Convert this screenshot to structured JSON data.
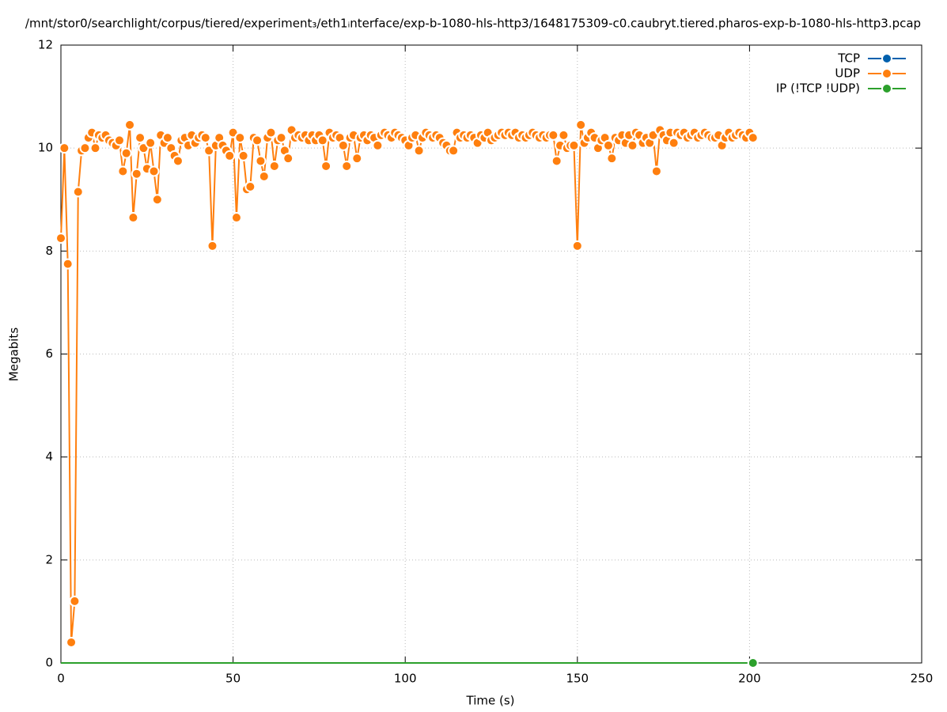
{
  "chart_data": {
    "type": "line",
    "title": "/mnt/stor0/searchlight/corpus/tiered/experiment₃/eth1ᵢnterface/exp-b-1080-hls-http3/1648175309-c0.caubryt.tiered.pharos-exp-b-1080-hls-http3.pcap",
    "xlabel": "Time (s)",
    "ylabel": "Megabits",
    "xlim": [
      0,
      250
    ],
    "xticks": [
      0,
      50,
      100,
      150,
      200,
      250
    ],
    "ylim": [
      0,
      12
    ],
    "yticks": [
      0,
      2,
      4,
      6,
      8,
      10,
      12
    ],
    "grid": true,
    "legend": "top-right",
    "x": [
      0,
      1,
      2,
      3,
      4,
      5,
      6,
      7,
      8,
      9,
      10,
      11,
      12,
      13,
      14,
      15,
      16,
      17,
      18,
      19,
      20,
      21,
      22,
      23,
      24,
      25,
      26,
      27,
      28,
      29,
      30,
      31,
      32,
      33,
      34,
      35,
      36,
      37,
      38,
      39,
      40,
      41,
      42,
      43,
      44,
      45,
      46,
      47,
      48,
      49,
      50,
      51,
      52,
      53,
      54,
      55,
      56,
      57,
      58,
      59,
      60,
      61,
      62,
      63,
      64,
      65,
      66,
      67,
      68,
      69,
      70,
      71,
      72,
      73,
      74,
      75,
      76,
      77,
      78,
      79,
      80,
      81,
      82,
      83,
      84,
      85,
      86,
      87,
      88,
      89,
      90,
      91,
      92,
      93,
      94,
      95,
      96,
      97,
      98,
      99,
      100,
      101,
      102,
      103,
      104,
      105,
      106,
      107,
      108,
      109,
      110,
      111,
      112,
      113,
      114,
      115,
      116,
      117,
      118,
      119,
      120,
      121,
      122,
      123,
      124,
      125,
      126,
      127,
      128,
      129,
      130,
      131,
      132,
      133,
      134,
      135,
      136,
      137,
      138,
      139,
      140,
      141,
      142,
      143,
      144,
      145,
      146,
      147,
      148,
      149,
      150,
      151,
      152,
      153,
      154,
      155,
      156,
      157,
      158,
      159,
      160,
      161,
      162,
      163,
      164,
      165,
      166,
      167,
      168,
      169,
      170,
      171,
      172,
      173,
      174,
      175,
      176,
      177,
      178,
      179,
      180,
      181,
      182,
      183,
      184,
      185,
      186,
      187,
      188,
      189,
      190,
      191,
      192,
      193,
      194,
      195,
      196,
      197,
      198,
      199,
      200,
      201
    ],
    "series": [
      {
        "name": "TCP",
        "color": "#0060ad",
        "values": [
          0,
          0,
          0,
          0,
          0,
          0,
          0,
          0,
          0,
          0,
          0,
          0,
          0,
          0,
          0,
          0,
          0,
          0,
          0,
          0,
          0,
          0,
          0,
          0,
          0,
          0,
          0,
          0,
          0,
          0,
          0,
          0,
          0,
          0,
          0,
          0,
          0,
          0,
          0,
          0,
          0,
          0,
          0,
          0,
          0,
          0,
          0,
          0,
          0,
          0,
          0,
          0,
          0,
          0,
          0,
          0,
          0,
          0,
          0,
          0,
          0,
          0,
          0,
          0,
          0,
          0,
          0,
          0,
          0,
          0,
          0,
          0,
          0,
          0,
          0,
          0,
          0,
          0,
          0,
          0,
          0,
          0,
          0,
          0,
          0,
          0,
          0,
          0,
          0,
          0,
          0,
          0,
          0,
          0,
          0,
          0,
          0,
          0,
          0,
          0,
          0,
          0,
          0,
          0,
          0,
          0,
          0,
          0,
          0,
          0,
          0,
          0,
          0,
          0,
          0,
          0,
          0,
          0,
          0,
          0,
          0,
          0,
          0,
          0,
          0,
          0,
          0,
          0,
          0,
          0,
          0,
          0,
          0,
          0,
          0,
          0,
          0,
          0,
          0,
          0,
          0,
          0,
          0,
          0,
          0,
          0,
          0,
          0,
          0,
          0,
          0,
          0,
          0,
          0,
          0,
          0,
          0,
          0,
          0,
          0,
          0,
          0,
          0,
          0,
          0,
          0,
          0,
          0,
          0,
          0,
          0,
          0,
          0,
          0,
          0,
          0,
          0,
          0,
          0,
          0,
          0,
          0,
          0,
          0,
          0,
          0,
          0,
          0,
          0,
          0,
          0,
          0,
          0,
          0,
          0,
          0,
          0,
          0,
          0,
          0,
          0,
          0
        ]
      },
      {
        "name": "UDP",
        "color": "#ff7f0e",
        "values": [
          8.25,
          10,
          7.75,
          0.4,
          1.2,
          9.15,
          9.95,
          10,
          10.2,
          10.3,
          10,
          10.25,
          10.2,
          10.25,
          10.15,
          10.1,
          10.05,
          10.15,
          9.55,
          9.9,
          10.45,
          8.65,
          9.5,
          10.2,
          10,
          9.6,
          10.1,
          9.55,
          9,
          10.25,
          10.1,
          10.2,
          10,
          9.85,
          9.75,
          10.15,
          10.2,
          10.05,
          10.25,
          10.1,
          10.2,
          10.25,
          10.2,
          9.95,
          8.1,
          10.05,
          10.2,
          10.05,
          9.95,
          9.85,
          10.3,
          8.65,
          10.2,
          9.85,
          9.2,
          9.25,
          10.2,
          10.15,
          9.75,
          9.45,
          10.2,
          10.3,
          9.65,
          10.15,
          10.2,
          9.95,
          9.8,
          10.35,
          10.2,
          10.25,
          10.2,
          10.25,
          10.15,
          10.25,
          10.15,
          10.25,
          10.15,
          9.65,
          10.3,
          10.2,
          10.25,
          10.2,
          10.05,
          9.65,
          10.2,
          10.25,
          9.8,
          10.2,
          10.25,
          10.15,
          10.25,
          10.2,
          10.05,
          10.25,
          10.3,
          10.25,
          10.2,
          10.3,
          10.25,
          10.2,
          10.15,
          10.05,
          10.2,
          10.25,
          9.95,
          10.2,
          10.3,
          10.25,
          10.2,
          10.25,
          10.2,
          10.1,
          10.05,
          9.95,
          9.95,
          10.3,
          10.2,
          10.25,
          10.2,
          10.25,
          10.2,
          10.1,
          10.25,
          10.2,
          10.3,
          10.15,
          10.2,
          10.25,
          10.3,
          10.25,
          10.3,
          10.25,
          10.3,
          10.2,
          10.25,
          10.2,
          10.25,
          10.3,
          10.25,
          10.2,
          10.25,
          10.2,
          10.25,
          10.25,
          9.75,
          10.05,
          10.25,
          10,
          10.05,
          10.05,
          8.1,
          10.45,
          10.1,
          10.2,
          10.3,
          10.2,
          10,
          10.15,
          10.2,
          10.05,
          9.8,
          10.2,
          10.15,
          10.25,
          10.1,
          10.25,
          10.05,
          10.3,
          10.25,
          10.1,
          10.2,
          10.1,
          10.25,
          9.55,
          10.35,
          10.25,
          10.15,
          10.3,
          10.1,
          10.3,
          10.25,
          10.3,
          10.2,
          10.25,
          10.3,
          10.2,
          10.25,
          10.3,
          10.25,
          10.2,
          10.2,
          10.25,
          10.05,
          10.2,
          10.3,
          10.2,
          10.25,
          10.3,
          10.25,
          10.2,
          10.3,
          10.2
        ]
      },
      {
        "name": "IP (!TCP  !UDP)",
        "color": "#2ca02c",
        "values": [
          0,
          0,
          0,
          0,
          0,
          0,
          0,
          0,
          0,
          0,
          0,
          0,
          0,
          0,
          0,
          0,
          0,
          0,
          0,
          0,
          0,
          0,
          0,
          0,
          0,
          0,
          0,
          0,
          0,
          0,
          0,
          0,
          0,
          0,
          0,
          0,
          0,
          0,
          0,
          0,
          0,
          0,
          0,
          0,
          0,
          0,
          0,
          0,
          0,
          0,
          0,
          0,
          0,
          0,
          0,
          0,
          0,
          0,
          0,
          0,
          0,
          0,
          0,
          0,
          0,
          0,
          0,
          0,
          0,
          0,
          0,
          0,
          0,
          0,
          0,
          0,
          0,
          0,
          0,
          0,
          0,
          0,
          0,
          0,
          0,
          0,
          0,
          0,
          0,
          0,
          0,
          0,
          0,
          0,
          0,
          0,
          0,
          0,
          0,
          0,
          0,
          0,
          0,
          0,
          0,
          0,
          0,
          0,
          0,
          0,
          0,
          0,
          0,
          0,
          0,
          0,
          0,
          0,
          0,
          0,
          0,
          0,
          0,
          0,
          0,
          0,
          0,
          0,
          0,
          0,
          0,
          0,
          0,
          0,
          0,
          0,
          0,
          0,
          0,
          0,
          0,
          0,
          0,
          0,
          0,
          0,
          0,
          0,
          0,
          0,
          0,
          0,
          0,
          0,
          0,
          0,
          0,
          0,
          0,
          0,
          0,
          0,
          0,
          0,
          0,
          0,
          0,
          0,
          0,
          0,
          0,
          0,
          0,
          0,
          0,
          0,
          0,
          0,
          0,
          0,
          0,
          0,
          0,
          0,
          0,
          0,
          0,
          0,
          0,
          0,
          0,
          0,
          0,
          0,
          0,
          0,
          0,
          0,
          0,
          0,
          0,
          0
        ]
      }
    ]
  }
}
